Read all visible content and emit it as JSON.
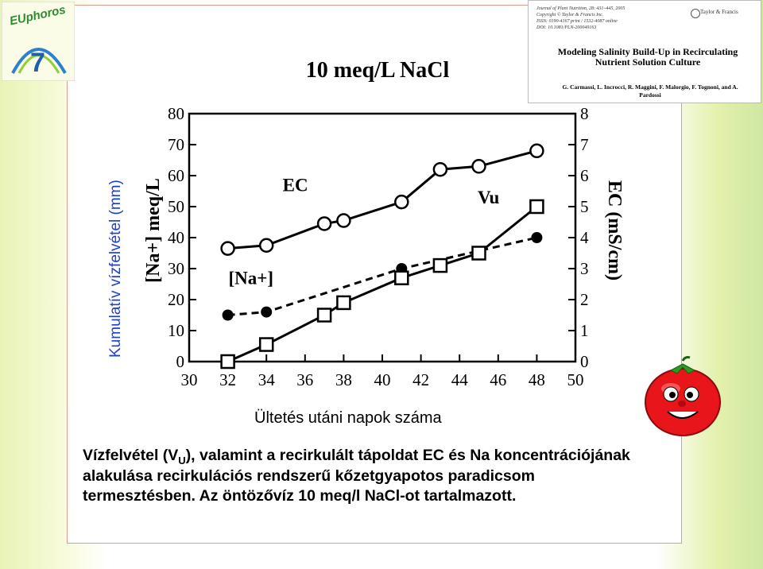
{
  "chart_data": {
    "type": "line",
    "title": "10 meq/L NaCl",
    "x": [
      32,
      34,
      37,
      38,
      41,
      43,
      45,
      48
    ],
    "xlim": [
      30,
      50
    ],
    "xticks": [
      30,
      32,
      34,
      36,
      38,
      40,
      42,
      44,
      46,
      48,
      50
    ],
    "ylim_left": [
      0,
      80
    ],
    "yticks_left": [
      0,
      10,
      20,
      30,
      40,
      50,
      60,
      70,
      80
    ],
    "ylabel_left": "[Na+] meq/L",
    "ylim_right": [
      0,
      8
    ],
    "yticks_right": [
      0,
      1,
      2,
      3,
      4,
      5,
      6,
      7,
      8
    ],
    "ylabel_right": "EC (mS/cm)",
    "xlabel": "Ültetés utáni napok száma",
    "ylabel_outer": "Kumulatív vízfelvétel (mm)",
    "grid": false,
    "series": [
      {
        "name": "EC",
        "marker": "open-circle",
        "line": "solid",
        "axis": "right",
        "x": [
          32,
          34,
          37,
          38,
          41,
          43,
          45,
          48
        ],
        "values": [
          3.65,
          3.75,
          4.45,
          4.55,
          5.15,
          6.2,
          6.3,
          6.8
        ]
      },
      {
        "name": "[Na+]",
        "marker": "filled-circle",
        "line": "dashed",
        "axis": "left",
        "x": [
          32,
          34,
          41,
          48
        ],
        "values": [
          15,
          16,
          30,
          40
        ]
      },
      {
        "name": "Vu",
        "marker": "open-square",
        "line": "solid",
        "axis": "left",
        "x": [
          32,
          34,
          37,
          38,
          41,
          43,
          45,
          48
        ],
        "values": [
          0,
          5.5,
          15,
          19,
          27,
          31,
          35,
          50
        ]
      }
    ],
    "annotations": [
      {
        "text": "EC",
        "x": 35.5,
        "y": 55
      },
      {
        "text": "[Na+]",
        "x": 33.2,
        "y": 25
      },
      {
        "text": "Vu",
        "x": 45.5,
        "y": 51
      }
    ]
  },
  "caption": {
    "line1_before": "Vízfelvétel (V",
    "line1_sub": "U",
    "line1_after": "), valamint a recirkulált tápoldat EC és Na",
    "rest": "koncentrációjának alakulása recirkulációs rendszerű kőzetgyapotos paradicsom termesztésben. Az öntözővíz 10 meq/l NaCl-ot tartalmazott."
  },
  "paper": {
    "journal_lines": [
      "Journal of Plant Nutrition, 28: 431–445, 2005",
      "Copyright © Taylor & Francis Inc.",
      "ISSN: 0190-4167 print / 1532-4087 online",
      "DOI: 10.1081/PLN-200049163"
    ],
    "publisher": "Taylor & Francis",
    "title": "Modeling Salinity Build-Up in Recirculating Nutrient Solution Culture",
    "authors": "G. Carmassi, L. Incrocci, R. Maggini, F. Malorgio, F. Tognoni, and A. Pardossi"
  },
  "logo": {
    "text": "EUphoros",
    "number": "7"
  },
  "colors": {
    "ylabel_outer": "#1c3fd0",
    "frame": "#e09a8a"
  }
}
